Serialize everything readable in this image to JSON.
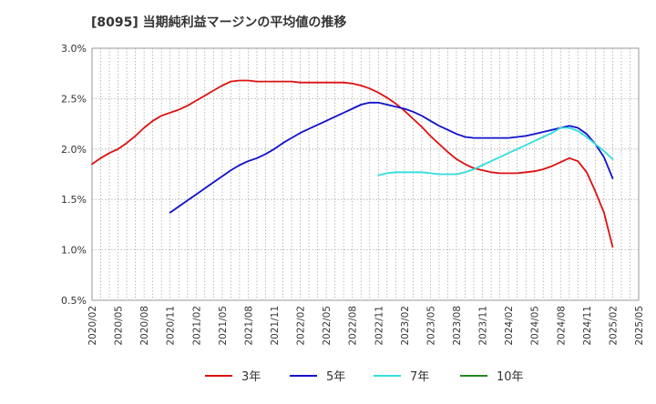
{
  "chart_data": {
    "type": "line",
    "title": "[8095]  当期純利益マージンの平均値の推移",
    "xlabel": "",
    "ylabel": "",
    "ylim": [
      0.5,
      3.0
    ],
    "y_ticks": [
      "0.5%",
      "1.0%",
      "1.5%",
      "2.0%",
      "2.5%",
      "3.0%"
    ],
    "y_tick_values": [
      0.5,
      1.0,
      1.5,
      2.0,
      2.5,
      3.0
    ],
    "x_ticks": [
      "2020/02",
      "2020/05",
      "2020/08",
      "2020/11",
      "2021/02",
      "2021/05",
      "2021/08",
      "2021/11",
      "2022/02",
      "2022/05",
      "2022/08",
      "2022/11",
      "2023/02",
      "2023/05",
      "2023/08",
      "2023/11",
      "2024/02",
      "2024/05",
      "2024/08",
      "2024/11",
      "2025/02",
      "2025/05"
    ],
    "grid": true,
    "legend_position": "bottom",
    "series": [
      {
        "name": "3年",
        "color": "#dd1111",
        "x": [
          "2020/02",
          "2020/03",
          "2020/04",
          "2020/05",
          "2020/06",
          "2020/07",
          "2020/08",
          "2020/09",
          "2020/10",
          "2020/11",
          "2020/12",
          "2021/01",
          "2021/02",
          "2021/03",
          "2021/04",
          "2021/05",
          "2021/06",
          "2021/07",
          "2021/08",
          "2021/09",
          "2021/10",
          "2021/11",
          "2021/12",
          "2022/01",
          "2022/02",
          "2022/03",
          "2022/04",
          "2022/05",
          "2022/06",
          "2022/07",
          "2022/08",
          "2022/09",
          "2022/10",
          "2022/11",
          "2022/12",
          "2023/01",
          "2023/02",
          "2023/03",
          "2023/04",
          "2023/05",
          "2023/06",
          "2023/07",
          "2023/08",
          "2023/09",
          "2023/10",
          "2023/11",
          "2023/12",
          "2024/01",
          "2024/02",
          "2024/03",
          "2024/04",
          "2024/05",
          "2024/06",
          "2024/07",
          "2024/08",
          "2024/09",
          "2024/10",
          "2024/11",
          "2024/12",
          "2025/01",
          "2025/02"
        ],
        "values": [
          1.85,
          1.91,
          1.96,
          2.0,
          2.06,
          2.13,
          2.21,
          2.28,
          2.33,
          2.36,
          2.39,
          2.43,
          2.48,
          2.53,
          2.58,
          2.63,
          2.67,
          2.68,
          2.68,
          2.67,
          2.67,
          2.67,
          2.67,
          2.67,
          2.66,
          2.66,
          2.66,
          2.66,
          2.66,
          2.66,
          2.65,
          2.63,
          2.6,
          2.56,
          2.51,
          2.45,
          2.38,
          2.3,
          2.22,
          2.13,
          2.05,
          1.97,
          1.9,
          1.85,
          1.81,
          1.79,
          1.77,
          1.76,
          1.76,
          1.76,
          1.77,
          1.78,
          1.8,
          1.83,
          1.87,
          1.91,
          1.88,
          1.77,
          1.58,
          1.37,
          1.03
        ]
      },
      {
        "name": "5年",
        "color": "#1111cc",
        "x": [
          "2020/11",
          "2020/12",
          "2021/01",
          "2021/02",
          "2021/03",
          "2021/04",
          "2021/05",
          "2021/06",
          "2021/07",
          "2021/08",
          "2021/09",
          "2021/10",
          "2021/11",
          "2021/12",
          "2022/01",
          "2022/02",
          "2022/03",
          "2022/04",
          "2022/05",
          "2022/06",
          "2022/07",
          "2022/08",
          "2022/09",
          "2022/10",
          "2022/11",
          "2022/12",
          "2023/01",
          "2023/02",
          "2023/03",
          "2023/04",
          "2023/05",
          "2023/06",
          "2023/07",
          "2023/08",
          "2023/09",
          "2023/10",
          "2023/11",
          "2023/12",
          "2024/01",
          "2024/02",
          "2024/03",
          "2024/04",
          "2024/05",
          "2024/06",
          "2024/07",
          "2024/08",
          "2024/09",
          "2024/10",
          "2024/11",
          "2024/12",
          "2025/01",
          "2025/02"
        ],
        "values": [
          1.37,
          1.43,
          1.49,
          1.55,
          1.61,
          1.67,
          1.73,
          1.79,
          1.84,
          1.88,
          1.91,
          1.95,
          2.0,
          2.06,
          2.11,
          2.16,
          2.2,
          2.24,
          2.28,
          2.32,
          2.36,
          2.4,
          2.44,
          2.46,
          2.46,
          2.44,
          2.42,
          2.4,
          2.37,
          2.33,
          2.28,
          2.23,
          2.19,
          2.15,
          2.12,
          2.11,
          2.11,
          2.11,
          2.11,
          2.11,
          2.12,
          2.13,
          2.15,
          2.17,
          2.19,
          2.21,
          2.23,
          2.21,
          2.15,
          2.05,
          1.92,
          1.71
        ]
      },
      {
        "name": "7年",
        "color": "#33dddd",
        "x": [
          "2022/11",
          "2022/12",
          "2023/01",
          "2023/02",
          "2023/03",
          "2023/04",
          "2023/05",
          "2023/06",
          "2023/07",
          "2023/08",
          "2023/09",
          "2023/10",
          "2023/11",
          "2023/12",
          "2024/01",
          "2024/02",
          "2024/03",
          "2024/04",
          "2024/05",
          "2024/06",
          "2024/07",
          "2024/08",
          "2024/09",
          "2024/10",
          "2024/11",
          "2024/12",
          "2025/01",
          "2025/02"
        ],
        "values": [
          1.74,
          1.76,
          1.77,
          1.77,
          1.77,
          1.77,
          1.76,
          1.75,
          1.75,
          1.75,
          1.77,
          1.8,
          1.84,
          1.88,
          1.92,
          1.96,
          2.0,
          2.04,
          2.08,
          2.12,
          2.16,
          2.21,
          2.21,
          2.18,
          2.12,
          2.05,
          1.98,
          1.9
        ]
      },
      {
        "name": "10年",
        "color": "#228822",
        "x": [],
        "values": []
      }
    ]
  }
}
